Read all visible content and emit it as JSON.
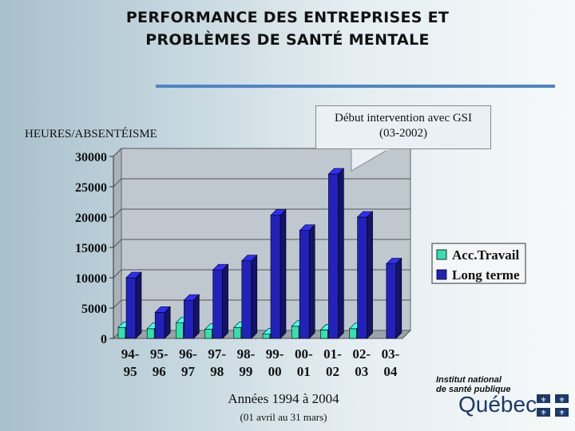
{
  "title_line1": "PERFORMANCE DES ENTREPRISES ET",
  "title_line2": "PROBLÈMES DE SANTÉ MENTALE",
  "callout_line1": "Début intervention avec GSI",
  "callout_line2": "(03-2002)",
  "logo_line1": "Institut national",
  "logo_line2": "de santé publique",
  "logo_word": "Québec",
  "colors": {
    "acc": "#33e0b0",
    "long": "#2222bb",
    "rule": "#4f84c6"
  },
  "chart_data": {
    "type": "bar",
    "ylabel": "HEURES/ABSENTÉISME",
    "xlabel": "Années 1994 à 2004",
    "xsublabel": "(01 avril au 31 mars)",
    "ylim": [
      0,
      30000
    ],
    "yticks": [
      "0",
      "5000",
      "10000",
      "15000",
      "20000",
      "25000",
      "30000"
    ],
    "categories": [
      [
        "94-",
        "95"
      ],
      [
        "95-",
        "96"
      ],
      [
        "96-",
        "97"
      ],
      [
        "97-",
        "98"
      ],
      [
        "98-",
        "99"
      ],
      [
        "99-",
        "00"
      ],
      [
        "00-",
        "01"
      ],
      [
        "01-",
        "02"
      ],
      [
        "02-",
        "03"
      ],
      [
        "03-",
        "04"
      ]
    ],
    "legend_position": "right",
    "series": [
      {
        "name": "Acc.Travail",
        "values": [
          1800,
          1600,
          2600,
          1500,
          1800,
          700,
          2000,
          1400,
          1600,
          0
        ]
      },
      {
        "name": "Long terme",
        "values": [
          10000,
          4300,
          6300,
          11300,
          12800,
          20300,
          17800,
          27100,
          20000,
          12300
        ]
      }
    ]
  }
}
